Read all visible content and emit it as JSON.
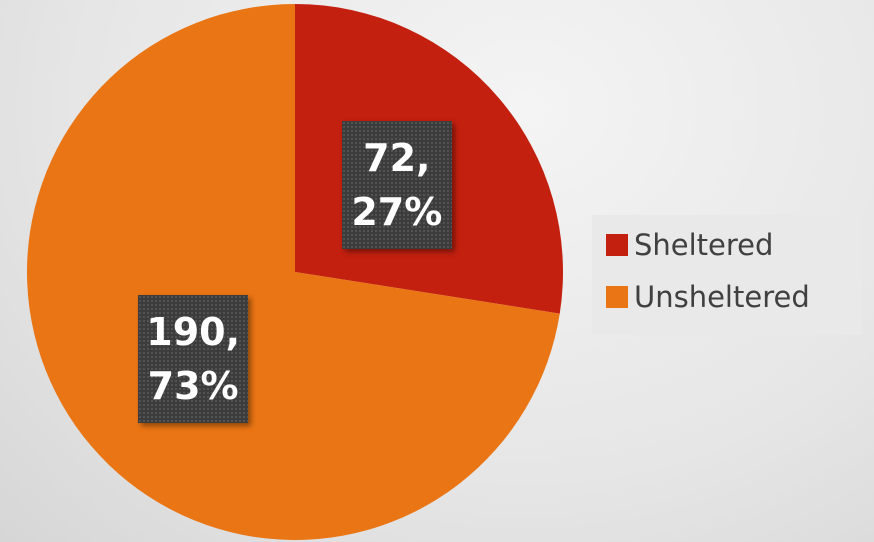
{
  "chart_data": {
    "type": "pie",
    "categories": [
      "Sheltered",
      "Unsheltered"
    ],
    "values": [
      72,
      190
    ],
    "value_labels": [
      "72, 27%",
      "190, 73%"
    ],
    "colors": [
      "#c4200f",
      "#ea7514"
    ],
    "legend": "right"
  }
}
